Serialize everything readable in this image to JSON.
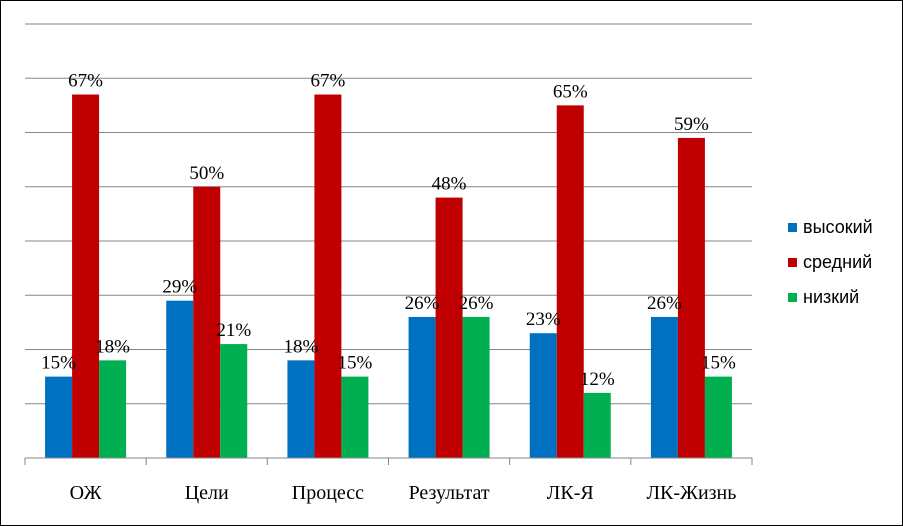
{
  "chart_data": {
    "type": "bar",
    "categories": [
      "ОЖ",
      "Цели",
      "Процесс",
      "Результат",
      "ЛК-Я",
      "ЛК-Жизнь"
    ],
    "series": [
      {
        "name": "высокий",
        "color": "#0070C0",
        "values": [
          15,
          29,
          18,
          26,
          23,
          26
        ]
      },
      {
        "name": "средний",
        "color": "#C00000",
        "values": [
          67,
          50,
          67,
          48,
          65,
          59
        ]
      },
      {
        "name": "низкий",
        "color": "#00B050",
        "values": [
          18,
          21,
          15,
          26,
          12,
          15
        ]
      }
    ],
    "value_suffix": "%",
    "ylim": [
      0,
      80
    ],
    "ytick_step": 10,
    "grid": true,
    "legend": "right"
  }
}
